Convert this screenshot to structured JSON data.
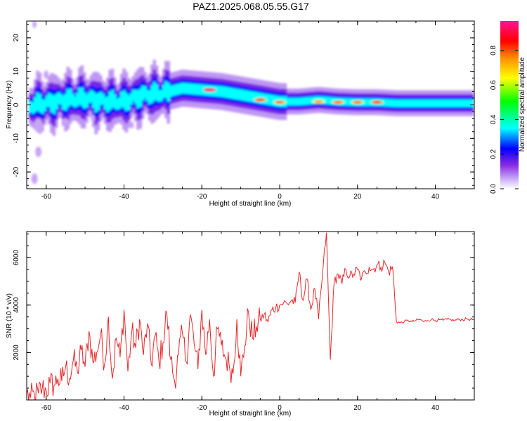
{
  "figure": {
    "title": "PAZ1.2025.068.05.55.G17"
  },
  "colorbar": {
    "label": "Normalized spectral amplitude",
    "ticks": [
      "0.0",
      "0.2",
      "0.4",
      "0.6",
      "0.8"
    ],
    "range": [
      0,
      0.97
    ],
    "colormap": [
      "#ffffff",
      "#c9a9f7",
      "#8a2be2",
      "#0000ff",
      "#00ffff",
      "#00ff00",
      "#ffff00",
      "#ff8c00",
      "#ff0000",
      "#ff1493"
    ]
  },
  "chart_data": [
    {
      "type": "heatmap",
      "xlabel": "Height of straight line (km)",
      "ylabel": "Frequency (Hz)",
      "xlim": [
        -65,
        50
      ],
      "ylim": [
        -25,
        25
      ],
      "xticks": [
        "-60",
        "-40",
        "-20",
        "0",
        "20",
        "40"
      ],
      "yticks": [
        "-20",
        "-10",
        "0",
        "10",
        "20"
      ],
      "grid": false,
      "ridge": {
        "x": [
          -63,
          -60,
          -55,
          -50,
          -45,
          -40,
          -35,
          -30,
          -25,
          -20,
          -15,
          -10,
          -5,
          0,
          5,
          10,
          15,
          20,
          25,
          30,
          35,
          40,
          45,
          50
        ],
        "frequency": [
          0,
          0.5,
          1.5,
          2,
          1,
          1,
          3,
          3.5,
          5,
          4.5,
          4,
          3,
          2,
          1,
          1,
          1.5,
          1,
          0.8,
          0.8,
          0.5,
          0.5,
          0.5,
          0.5,
          0.5
        ]
      },
      "peaks": [
        {
          "x": -18,
          "frequency": 4.5,
          "amplitude": 0.97
        },
        {
          "x": -5,
          "frequency": 1.5,
          "amplitude": 0.85
        },
        {
          "x": 0,
          "frequency": 0.8,
          "amplitude": 0.8
        },
        {
          "x": 10,
          "frequency": 1.0,
          "amplitude": 0.75
        },
        {
          "x": 15,
          "frequency": 0.8,
          "amplitude": 0.8
        },
        {
          "x": 20,
          "frequency": 0.8,
          "amplitude": 0.8
        },
        {
          "x": 25,
          "frequency": 0.8,
          "amplitude": 0.85
        }
      ]
    },
    {
      "type": "line",
      "xlabel": "Height of straight line (km)",
      "ylabel": "SNR (10 * v/v)",
      "xlim": [
        -65,
        50
      ],
      "ylim": [
        0,
        7100
      ],
      "xticks": [
        "-60",
        "-40",
        "-20",
        "0",
        "20",
        "40"
      ],
      "yticks": [
        "2000",
        "4000",
        "6000"
      ],
      "grid": false,
      "series": [
        {
          "color": "#e8262a",
          "x": [
            -65,
            -64,
            -63,
            -62,
            -61,
            -60,
            -59,
            -58,
            -57,
            -56,
            -55,
            -54,
            -53,
            -52,
            -51,
            -50,
            -49,
            -48,
            -47,
            -46,
            -45,
            -44,
            -43,
            -42,
            -41,
            -40,
            -39,
            -38,
            -37,
            -36,
            -35,
            -34,
            -33,
            -32,
            -31,
            -30,
            -29,
            -28,
            -27,
            -26,
            -25,
            -24,
            -23,
            -22,
            -21,
            -20,
            -19,
            -18,
            -17,
            -16,
            -15,
            -14,
            -13,
            -12,
            -11,
            -10,
            -9,
            -8,
            -7,
            -6,
            -5,
            -4,
            -3,
            -2,
            -1,
            0,
            1,
            2,
            3,
            4,
            5,
            6,
            7,
            8,
            9,
            10,
            11,
            12,
            13,
            14,
            15,
            16,
            17,
            18,
            19,
            20,
            21,
            22,
            23,
            24,
            25,
            26,
            27,
            28,
            29,
            30,
            31,
            32,
            33,
            34,
            35,
            36,
            37,
            38,
            39,
            40,
            41,
            42,
            43,
            44,
            45,
            46,
            47,
            48,
            49,
            50
          ],
          "y": [
            300,
            100,
            200,
            300,
            500,
            400,
            700,
            600,
            900,
            800,
            1400,
            900,
            1700,
            1200,
            2100,
            1400,
            2900,
            1600,
            2000,
            2800,
            1500,
            3500,
            900,
            2600,
            1800,
            3800,
            1200,
            2900,
            2200,
            3400,
            1900,
            3200,
            1500,
            2700,
            1600,
            2400,
            3700,
            1700,
            800,
            1900,
            2800,
            1600,
            3600,
            2400,
            1300,
            3800,
            1900,
            3400,
            1000,
            3000,
            2300,
            1800,
            1500,
            1100,
            3400,
            1000,
            2300,
            3700,
            2600,
            3100,
            3400,
            3600,
            3300,
            3800,
            3900,
            4000,
            4100,
            4050,
            4200,
            4100,
            5400,
            4200,
            5100,
            3800,
            4700,
            3400,
            5300,
            7050,
            1700,
            5000,
            5300,
            4900,
            5500,
            5200,
            5300,
            5500,
            5100,
            5400,
            5600,
            5500,
            5700,
            5600,
            5800,
            5400,
            5600,
            3300,
            3250,
            3300,
            3350,
            3300,
            3350,
            3400,
            3300,
            3350,
            3400,
            3350,
            3380,
            3360,
            3400,
            3380,
            3350,
            3400,
            3380,
            3420,
            3400,
            3380
          ]
        }
      ]
    }
  ]
}
